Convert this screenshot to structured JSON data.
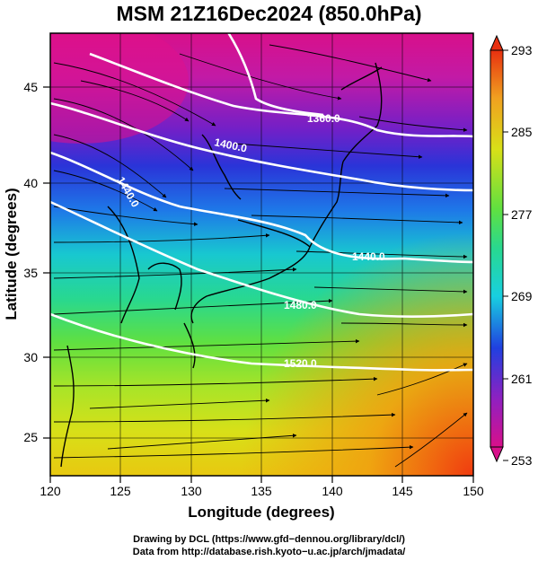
{
  "title": "MSM 21Z16Dec2024 (850.0hPa)",
  "axes": {
    "xlabel": "Longitude (degrees)",
    "ylabel": "Latitude  (degrees)",
    "x_ticks": [
      "120",
      "125",
      "130",
      "135",
      "140",
      "145",
      "150"
    ],
    "y_ticks": [
      "25",
      "30",
      "35",
      "40",
      "45"
    ]
  },
  "colorbar": {
    "labels": [
      "293",
      "285",
      "277",
      "269",
      "261",
      "253"
    ]
  },
  "contours": [
    {
      "label": "1360.0"
    },
    {
      "label": "1400.0"
    },
    {
      "label": "1440.0"
    },
    {
      "label": "1440.0"
    },
    {
      "label": "1480.0"
    },
    {
      "label": "1520.0"
    }
  ],
  "credits": {
    "line1": "Drawing by DCL (https://www.gfd−dennou.org/library/dcl/)",
    "line2": "Data from http://database.rish.kyoto−u.ac.jp/arch/jmadata/"
  }
}
